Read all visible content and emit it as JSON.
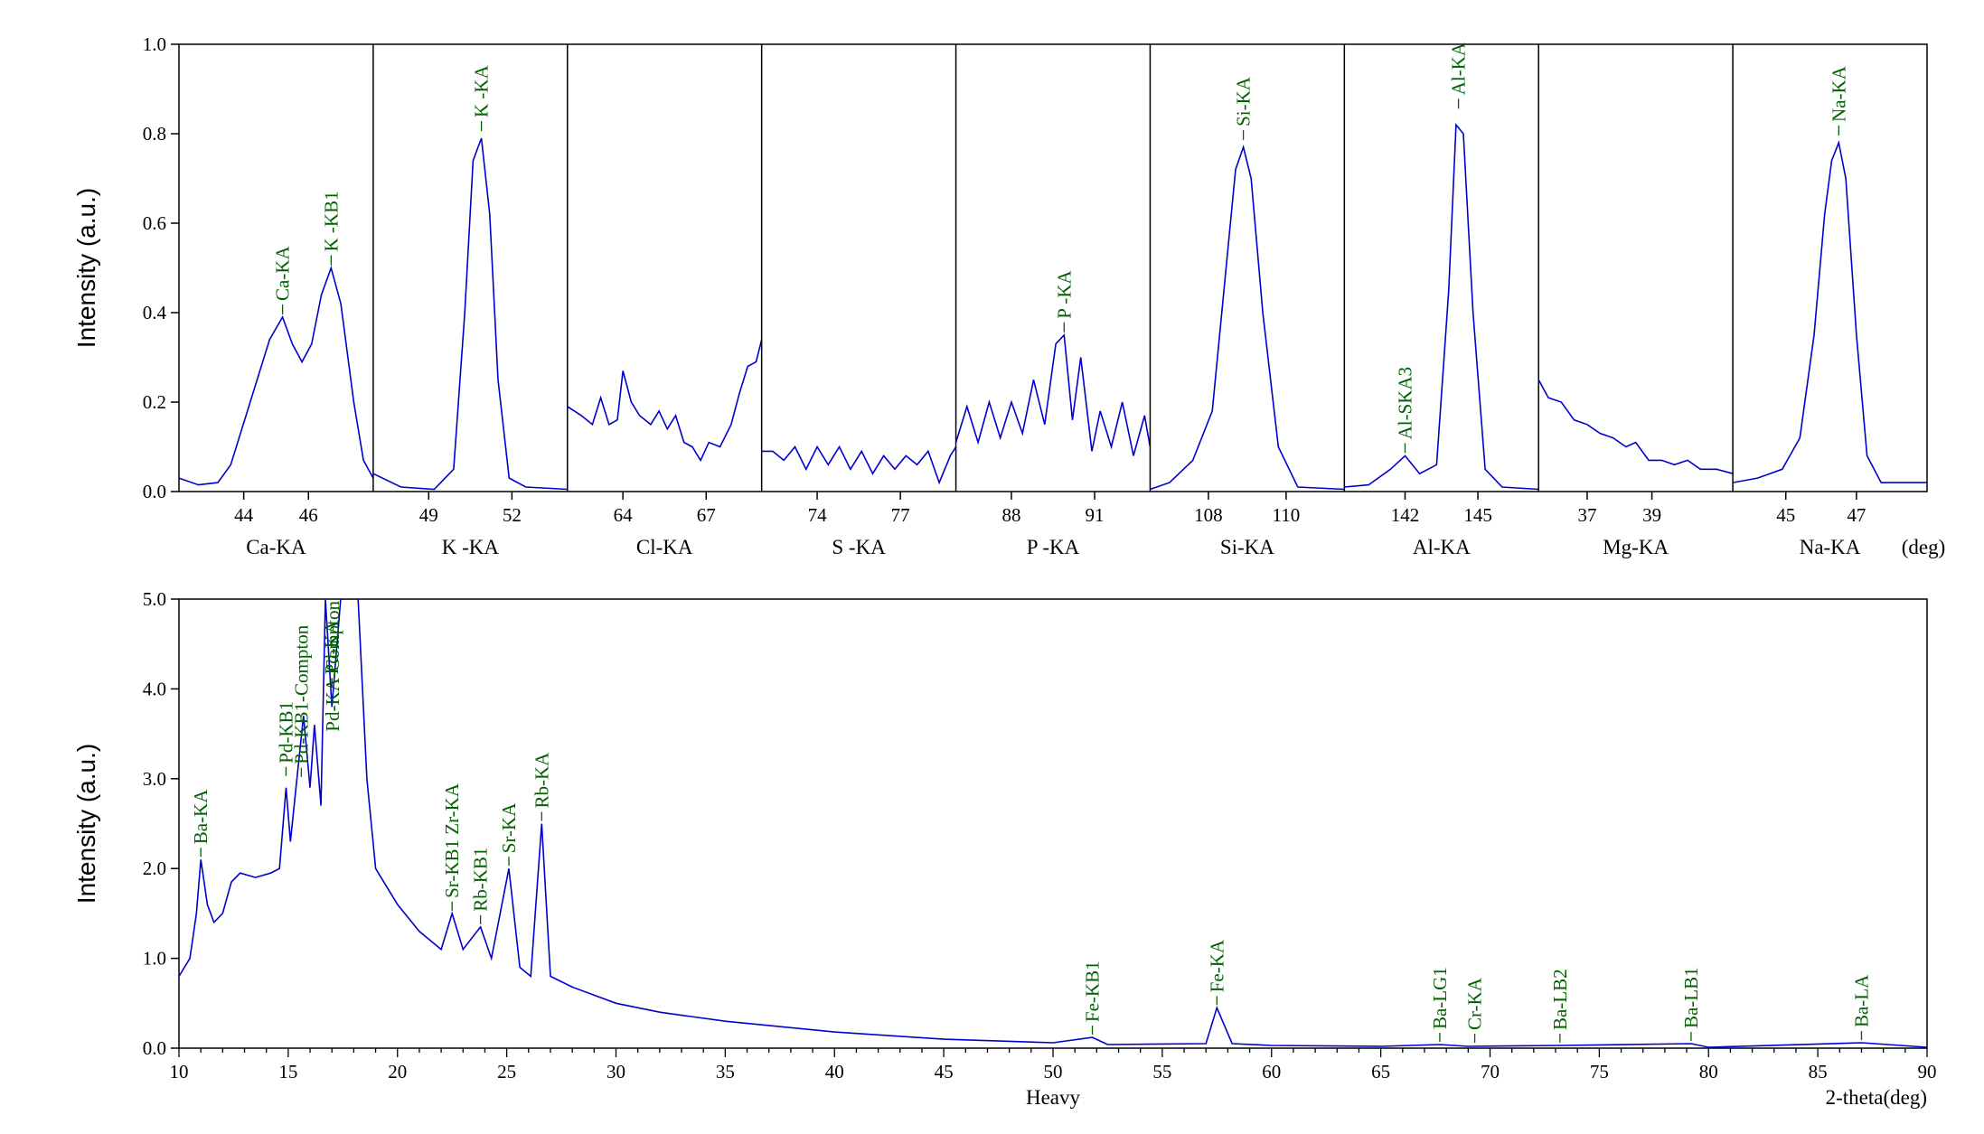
{
  "colors": {
    "line": "#0000cc",
    "peak_label": "#006000",
    "axis": "#000000"
  },
  "chart_data": [
    {
      "type": "line",
      "ylabel": "Intensity (a.u.)",
      "ylim": [
        0,
        1.0
      ],
      "yticks": [
        "0.0",
        "0.2",
        "0.4",
        "0.6",
        "0.8",
        "1.0"
      ],
      "unit_label": "(deg)",
      "panels": [
        {
          "label": "Ca-KA",
          "xlim": [
            42.0,
            48.0
          ],
          "xticks": [
            "44",
            "46"
          ],
          "series": [
            [
              42.0,
              0.03
            ],
            [
              42.6,
              0.015
            ],
            [
              43.2,
              0.02
            ],
            [
              43.6,
              0.06
            ],
            [
              44.2,
              0.2
            ],
            [
              44.8,
              0.34
            ],
            [
              45.2,
              0.39
            ],
            [
              45.5,
              0.33
            ],
            [
              45.8,
              0.29
            ],
            [
              46.1,
              0.33
            ],
            [
              46.4,
              0.44
            ],
            [
              46.7,
              0.5
            ],
            [
              47.0,
              0.42
            ],
            [
              47.4,
              0.2
            ],
            [
              47.7,
              0.07
            ],
            [
              48.0,
              0.03
            ]
          ],
          "peaks": [
            {
              "label": "Ca-KA",
              "x": 45.2,
              "y": 0.39
            },
            {
              "label": "K -KB1",
              "x": 46.7,
              "y": 0.5
            }
          ]
        },
        {
          "label": "K -KA",
          "xlim": [
            47.0,
            54.0
          ],
          "xticks": [
            "49",
            "52"
          ],
          "series": [
            [
              47.0,
              0.04
            ],
            [
              48.0,
              0.01
            ],
            [
              49.2,
              0.005
            ],
            [
              49.9,
              0.05
            ],
            [
              50.3,
              0.4
            ],
            [
              50.6,
              0.74
            ],
            [
              50.9,
              0.79
            ],
            [
              51.2,
              0.62
            ],
            [
              51.5,
              0.25
            ],
            [
              51.9,
              0.03
            ],
            [
              52.5,
              0.01
            ],
            [
              54.0,
              0.005
            ]
          ],
          "peaks": [
            {
              "label": "K -KA",
              "x": 50.9,
              "y": 0.8
            }
          ]
        },
        {
          "label": "Cl-KA",
          "xlim": [
            62.0,
            69.0
          ],
          "xticks": [
            "64",
            "67"
          ],
          "series": [
            [
              62.0,
              0.19
            ],
            [
              62.5,
              0.17
            ],
            [
              62.9,
              0.15
            ],
            [
              63.2,
              0.21
            ],
            [
              63.5,
              0.15
            ],
            [
              63.8,
              0.16
            ],
            [
              64.0,
              0.27
            ],
            [
              64.3,
              0.2
            ],
            [
              64.6,
              0.17
            ],
            [
              65.0,
              0.15
            ],
            [
              65.3,
              0.18
            ],
            [
              65.6,
              0.14
            ],
            [
              65.9,
              0.17
            ],
            [
              66.2,
              0.11
            ],
            [
              66.5,
              0.1
            ],
            [
              66.8,
              0.07
            ],
            [
              67.1,
              0.11
            ],
            [
              67.5,
              0.1
            ],
            [
              67.9,
              0.15
            ],
            [
              68.2,
              0.22
            ],
            [
              68.5,
              0.28
            ],
            [
              68.8,
              0.29
            ],
            [
              69.0,
              0.34
            ]
          ],
          "peaks": []
        },
        {
          "label": "S -KA",
          "xlim": [
            72.0,
            79.0
          ],
          "xticks": [
            "74",
            "77"
          ],
          "series": [
            [
              72.0,
              0.09
            ],
            [
              72.4,
              0.09
            ],
            [
              72.8,
              0.07
            ],
            [
              73.2,
              0.1
            ],
            [
              73.6,
              0.05
            ],
            [
              74.0,
              0.1
            ],
            [
              74.4,
              0.06
            ],
            [
              74.8,
              0.1
            ],
            [
              75.2,
              0.05
            ],
            [
              75.6,
              0.09
            ],
            [
              76.0,
              0.04
            ],
            [
              76.4,
              0.08
            ],
            [
              76.8,
              0.05
            ],
            [
              77.2,
              0.08
            ],
            [
              77.6,
              0.06
            ],
            [
              78.0,
              0.09
            ],
            [
              78.4,
              0.02
            ],
            [
              78.8,
              0.08
            ],
            [
              79.0,
              0.1
            ]
          ],
          "peaks": []
        },
        {
          "label": "P -KA",
          "xlim": [
            86.0,
            93.0
          ],
          "xticks": [
            "88",
            "91"
          ],
          "series": [
            [
              86.0,
              0.11
            ],
            [
              86.4,
              0.19
            ],
            [
              86.8,
              0.11
            ],
            [
              87.2,
              0.2
            ],
            [
              87.6,
              0.12
            ],
            [
              88.0,
              0.2
            ],
            [
              88.4,
              0.13
            ],
            [
              88.8,
              0.25
            ],
            [
              89.2,
              0.15
            ],
            [
              89.6,
              0.33
            ],
            [
              89.9,
              0.35
            ],
            [
              90.2,
              0.16
            ],
            [
              90.5,
              0.3
            ],
            [
              90.9,
              0.09
            ],
            [
              91.2,
              0.18
            ],
            [
              91.6,
              0.1
            ],
            [
              92.0,
              0.2
            ],
            [
              92.4,
              0.08
            ],
            [
              92.8,
              0.17
            ],
            [
              93.0,
              0.1
            ]
          ],
          "peaks": [
            {
              "label": "P -KA",
              "x": 89.9,
              "y": 0.35
            }
          ]
        },
        {
          "label": "Si-KA",
          "xlim": [
            106.5,
            111.5
          ],
          "xticks": [
            "108",
            "110"
          ],
          "series": [
            [
              106.5,
              0.005
            ],
            [
              107.0,
              0.02
            ],
            [
              107.6,
              0.07
            ],
            [
              108.1,
              0.18
            ],
            [
              108.4,
              0.45
            ],
            [
              108.7,
              0.72
            ],
            [
              108.9,
              0.77
            ],
            [
              109.1,
              0.7
            ],
            [
              109.4,
              0.4
            ],
            [
              109.8,
              0.1
            ],
            [
              110.3,
              0.01
            ],
            [
              111.5,
              0.005
            ]
          ],
          "peaks": [
            {
              "label": "Si-KA",
              "x": 108.9,
              "y": 0.78
            }
          ]
        },
        {
          "label": "Al-KA",
          "xlim": [
            139.5,
            147.5
          ],
          "xticks": [
            "142",
            "145"
          ],
          "series": [
            [
              139.5,
              0.01
            ],
            [
              140.5,
              0.015
            ],
            [
              141.4,
              0.05
            ],
            [
              142.0,
              0.08
            ],
            [
              142.6,
              0.04
            ],
            [
              143.3,
              0.06
            ],
            [
              143.8,
              0.45
            ],
            [
              144.1,
              0.82
            ],
            [
              144.4,
              0.8
            ],
            [
              144.8,
              0.4
            ],
            [
              145.3,
              0.05
            ],
            [
              146.0,
              0.01
            ],
            [
              147.5,
              0.005
            ]
          ],
          "peaks": [
            {
              "label": "Al-SKA3",
              "x": 142.0,
              "y": 0.08
            },
            {
              "label": "Al-KA",
              "x": 144.2,
              "y": 0.85
            }
          ]
        },
        {
          "label": "Mg-KA",
          "xlim": [
            35.5,
            41.5
          ],
          "xticks": [
            "37",
            "39"
          ],
          "series": [
            [
              35.5,
              0.25
            ],
            [
              35.8,
              0.21
            ],
            [
              36.2,
              0.2
            ],
            [
              36.6,
              0.16
            ],
            [
              37.0,
              0.15
            ],
            [
              37.4,
              0.13
            ],
            [
              37.8,
              0.12
            ],
            [
              38.2,
              0.1
            ],
            [
              38.5,
              0.11
            ],
            [
              38.9,
              0.07
            ],
            [
              39.3,
              0.07
            ],
            [
              39.7,
              0.06
            ],
            [
              40.1,
              0.07
            ],
            [
              40.5,
              0.05
            ],
            [
              41.0,
              0.05
            ],
            [
              41.5,
              0.04
            ]
          ],
          "peaks": []
        },
        {
          "label": "Na-KA",
          "xlim": [
            43.5,
            49.0
          ],
          "xticks": [
            "45",
            "47"
          ],
          "series": [
            [
              43.5,
              0.02
            ],
            [
              44.2,
              0.03
            ],
            [
              44.9,
              0.05
            ],
            [
              45.4,
              0.12
            ],
            [
              45.8,
              0.35
            ],
            [
              46.1,
              0.62
            ],
            [
              46.3,
              0.74
            ],
            [
              46.5,
              0.78
            ],
            [
              46.7,
              0.7
            ],
            [
              47.0,
              0.35
            ],
            [
              47.3,
              0.08
            ],
            [
              47.7,
              0.02
            ],
            [
              48.4,
              0.02
            ],
            [
              49.0,
              0.02
            ]
          ],
          "peaks": [
            {
              "label": "Na-KA",
              "x": 46.5,
              "y": 0.79
            }
          ]
        }
      ]
    },
    {
      "type": "line",
      "ylabel": "Intensity (a.u.)",
      "ylim": [
        0,
        5.0
      ],
      "yticks": [
        "0.0",
        "1.0",
        "2.0",
        "3.0",
        "4.0",
        "5.0"
      ],
      "xlim": [
        10,
        90
      ],
      "xticks": [
        "10",
        "15",
        "20",
        "25",
        "30",
        "35",
        "40",
        "45",
        "50",
        "55",
        "60",
        "65",
        "70",
        "75",
        "80",
        "85",
        "90"
      ],
      "xlabel": "Heavy",
      "xlabel_right": "2-theta(deg)",
      "series": [
        [
          10,
          0.8
        ],
        [
          10.5,
          1.0
        ],
        [
          10.8,
          1.5
        ],
        [
          11.0,
          2.1
        ],
        [
          11.3,
          1.6
        ],
        [
          11.6,
          1.4
        ],
        [
          12.0,
          1.5
        ],
        [
          12.4,
          1.85
        ],
        [
          12.8,
          1.95
        ],
        [
          13.5,
          1.9
        ],
        [
          14.2,
          1.95
        ],
        [
          14.6,
          2.0
        ],
        [
          14.9,
          2.9
        ],
        [
          15.1,
          2.3
        ],
        [
          15.4,
          3.0
        ],
        [
          15.7,
          3.7
        ],
        [
          16.0,
          2.9
        ],
        [
          16.2,
          3.6
        ],
        [
          16.5,
          2.7
        ],
        [
          16.7,
          5.0
        ],
        [
          17.0,
          3.8
        ],
        [
          17.4,
          5.0
        ],
        [
          18.2,
          5.0
        ],
        [
          18.6,
          3.0
        ],
        [
          19.0,
          2.0
        ],
        [
          20.0,
          1.6
        ],
        [
          21.0,
          1.3
        ],
        [
          22.0,
          1.1
        ],
        [
          22.5,
          1.5
        ],
        [
          23.0,
          1.1
        ],
        [
          23.8,
          1.35
        ],
        [
          24.3,
          1.0
        ],
        [
          25.1,
          2.0
        ],
        [
          25.6,
          0.9
        ],
        [
          26.1,
          0.8
        ],
        [
          26.6,
          2.5
        ],
        [
          27.0,
          0.8
        ],
        [
          28.0,
          0.68
        ],
        [
          30.0,
          0.5
        ],
        [
          32.0,
          0.4
        ],
        [
          35.0,
          0.3
        ],
        [
          40.0,
          0.18
        ],
        [
          45.0,
          0.1
        ],
        [
          50.0,
          0.06
        ],
        [
          51.8,
          0.12
        ],
        [
          52.5,
          0.04
        ],
        [
          57.0,
          0.05
        ],
        [
          57.5,
          0.45
        ],
        [
          58.2,
          0.05
        ],
        [
          60.0,
          0.03
        ],
        [
          65.0,
          0.02
        ],
        [
          67.7,
          0.04
        ],
        [
          69.0,
          0.02
        ],
        [
          73.2,
          0.03
        ],
        [
          79.2,
          0.05
        ],
        [
          80.0,
          0.01
        ],
        [
          87.0,
          0.06
        ],
        [
          90.0,
          0.01
        ]
      ],
      "peaks": [
        {
          "label": "Ba-KA",
          "x": 11.0,
          "y": 2.1
        },
        {
          "label": "Pd-KB1",
          "x": 14.9,
          "y": 3.0
        },
        {
          "label": "Pd-KB1-Compton",
          "x": 15.6,
          "y": 3.0,
          "tick_above": true
        },
        {
          "label": "Pd-KA",
          "x": 17.0,
          "y": 4.0,
          "tick_above": true
        },
        {
          "label": "Pd-KA-Compton",
          "x": 16.5,
          "y": 5.0
        },
        {
          "label": "Sr-KB1 Zr-KA",
          "x": 22.5,
          "y": 1.5
        },
        {
          "label": "Rb-KB1",
          "x": 23.8,
          "y": 1.35
        },
        {
          "label": "Sr-KA",
          "x": 25.1,
          "y": 2.0
        },
        {
          "label": "Rb-KA",
          "x": 26.6,
          "y": 2.5
        },
        {
          "label": "Fe-KB1",
          "x": 51.8,
          "y": 0.12
        },
        {
          "label": "Fe-KA",
          "x": 57.5,
          "y": 0.45
        },
        {
          "label": "Ba-LG1",
          "x": 67.7,
          "y": 0.04
        },
        {
          "label": "Cr-KA",
          "x": 69.3,
          "y": 0.03
        },
        {
          "label": "Ba-LB2",
          "x": 73.2,
          "y": 0.03
        },
        {
          "label": "Ba-LB1",
          "x": 79.2,
          "y": 0.05
        },
        {
          "label": "Ba-LA",
          "x": 87.0,
          "y": 0.06
        }
      ]
    }
  ]
}
